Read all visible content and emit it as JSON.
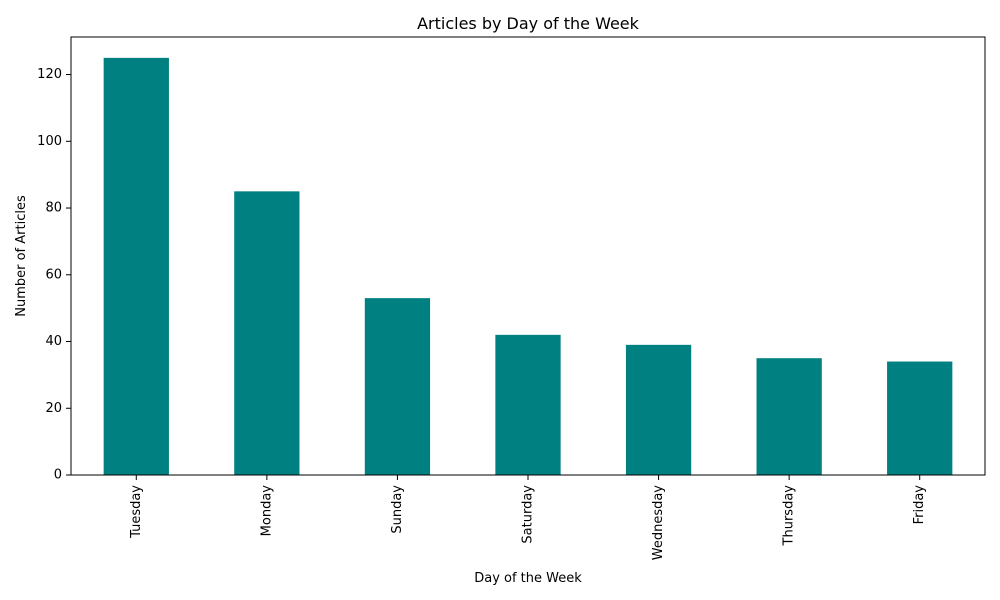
{
  "chart_data": {
    "type": "bar",
    "title": "Articles by Day of the Week",
    "xlabel": "Day of the Week",
    "ylabel": "Number of Articles",
    "categories": [
      "Tuesday",
      "Monday",
      "Sunday",
      "Saturday",
      "Wednesday",
      "Thursday",
      "Friday"
    ],
    "values": [
      125,
      85,
      53,
      42,
      39,
      35,
      34
    ],
    "yticks": [
      0,
      20,
      40,
      60,
      80,
      100,
      120
    ],
    "ylim": [
      0,
      131.25
    ],
    "bar_color": "#008080",
    "grid": false,
    "tick_label_rotation": "vertical"
  }
}
